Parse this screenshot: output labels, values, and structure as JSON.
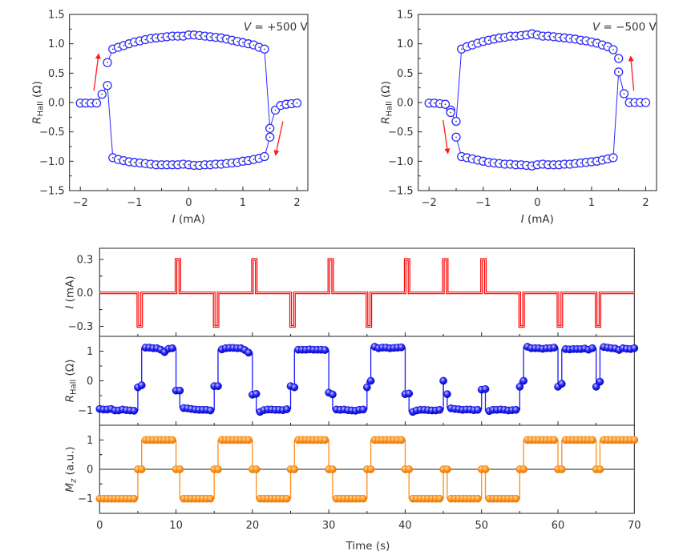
{
  "chart_data": [
    {
      "type": "scatter",
      "annotation": {
        "symbol": "V",
        "text": " = +500 V"
      },
      "xlabel": {
        "symbol": "I",
        "unit": " (mA)"
      },
      "ylabel": {
        "symbol": "R",
        "subscript": "Hall",
        "unit": " (Ω)"
      },
      "xlim": [
        -2.2,
        2.2
      ],
      "ylim": [
        -1.5,
        1.5
      ],
      "xticks": [
        "−2",
        "−1",
        "0",
        "1",
        "2"
      ],
      "yticks": [
        "−1.5",
        "−1.0",
        "−0.5",
        "0.0",
        "0.5",
        "1.0",
        "1.5"
      ],
      "color": "#2a2aff",
      "arrow_color": "#ff1a1a",
      "series": [
        {
          "points": [
            [
              -1.5,
              0.68
            ],
            [
              -1.4,
              0.91
            ],
            [
              -1.3,
              0.94
            ],
            [
              -1.2,
              0.97
            ],
            [
              -1.1,
              1.0
            ],
            [
              -1.0,
              1.03
            ],
            [
              -0.9,
              1.05
            ],
            [
              -0.8,
              1.07
            ],
            [
              -0.7,
              1.09
            ],
            [
              -0.6,
              1.1
            ],
            [
              -0.5,
              1.11
            ],
            [
              -0.4,
              1.12
            ],
            [
              -0.3,
              1.13
            ],
            [
              -0.2,
              1.13
            ],
            [
              -0.1,
              1.13
            ],
            [
              0,
              1.15
            ],
            [
              0.1,
              1.15
            ],
            [
              0.2,
              1.14
            ],
            [
              0.3,
              1.13
            ],
            [
              0.4,
              1.12
            ],
            [
              0.5,
              1.11
            ],
            [
              0.6,
              1.1
            ],
            [
              0.7,
              1.08
            ],
            [
              0.8,
              1.06
            ],
            [
              0.9,
              1.04
            ],
            [
              1.0,
              1.02
            ],
            [
              1.1,
              1.0
            ],
            [
              1.2,
              0.98
            ],
            [
              1.3,
              0.94
            ],
            [
              1.4,
              0.91
            ],
            [
              1.5,
              -0.44
            ],
            [
              1.6,
              -0.13
            ],
            [
              1.7,
              -0.05
            ],
            [
              1.8,
              -0.03
            ],
            [
              1.9,
              -0.02
            ],
            [
              2.0,
              -0.01
            ]
          ]
        },
        {
          "points": [
            [
              -2.0,
              -0.01
            ],
            [
              -1.9,
              -0.01
            ],
            [
              -1.8,
              -0.01
            ],
            [
              -1.7,
              -0.01
            ],
            [
              -1.6,
              0.14
            ],
            [
              -1.5,
              0.29
            ],
            [
              -1.4,
              -0.94
            ],
            [
              -1.3,
              -0.97
            ],
            [
              -1.2,
              -0.99
            ],
            [
              -1.1,
              -1.01
            ],
            [
              -1.0,
              -1.02
            ],
            [
              -0.9,
              -1.03
            ],
            [
              -0.8,
              -1.04
            ],
            [
              -0.7,
              -1.05
            ],
            [
              -0.6,
              -1.06
            ],
            [
              -0.5,
              -1.06
            ],
            [
              -0.4,
              -1.06
            ],
            [
              -0.3,
              -1.06
            ],
            [
              -0.2,
              -1.06
            ],
            [
              -0.1,
              -1.05
            ],
            [
              0,
              -1.06
            ],
            [
              0.1,
              -1.07
            ],
            [
              0.2,
              -1.07
            ],
            [
              0.3,
              -1.06
            ],
            [
              0.4,
              -1.06
            ],
            [
              0.5,
              -1.05
            ],
            [
              0.6,
              -1.05
            ],
            [
              0.7,
              -1.04
            ],
            [
              0.8,
              -1.03
            ],
            [
              0.9,
              -1.02
            ],
            [
              1.0,
              -1.0
            ],
            [
              1.1,
              -0.99
            ],
            [
              1.2,
              -0.97
            ],
            [
              1.3,
              -0.95
            ],
            [
              1.4,
              -0.92
            ],
            [
              1.5,
              -0.59
            ]
          ]
        }
      ],
      "arrows": [
        [
          [
            -1.75,
            0.2
          ],
          [
            -1.66,
            0.84
          ]
        ],
        [
          [
            1.74,
            -0.32
          ],
          [
            1.6,
            -0.91
          ]
        ]
      ]
    },
    {
      "type": "scatter",
      "annotation": {
        "symbol": "V",
        "text": " = −500 V"
      },
      "xlabel": {
        "symbol": "I",
        "unit": " (mA)"
      },
      "ylabel": {
        "symbol": "R",
        "subscript": "Hall",
        "unit": " (Ω)"
      },
      "xlim": [
        -2.2,
        2.2
      ],
      "ylim": [
        -1.5,
        1.5
      ],
      "xticks": [
        "−2",
        "−1",
        "0",
        "1",
        "2"
      ],
      "yticks": [
        "−1.5",
        "−1.0",
        "−0.5",
        "0.0",
        "0.5",
        "1.0",
        "1.5"
      ],
      "color": "#2a2aff",
      "arrow_color": "#ff1a1a",
      "series": [
        {
          "points": [
            [
              -2.0,
              -0.01
            ],
            [
              -1.9,
              -0.01
            ],
            [
              -1.8,
              -0.02
            ],
            [
              -1.7,
              -0.03
            ],
            [
              -1.6,
              -0.13
            ],
            [
              -1.6,
              -0.17
            ],
            [
              -1.5,
              -0.32
            ],
            [
              -1.4,
              0.91
            ],
            [
              -1.3,
              0.95
            ],
            [
              -1.2,
              0.98
            ],
            [
              -1.1,
              1.01
            ],
            [
              -1.0,
              1.04
            ],
            [
              -0.9,
              1.06
            ],
            [
              -0.8,
              1.08
            ],
            [
              -0.7,
              1.1
            ],
            [
              -0.6,
              1.11
            ],
            [
              -0.5,
              1.13
            ],
            [
              -0.4,
              1.13
            ],
            [
              -0.3,
              1.14
            ],
            [
              -0.2,
              1.15
            ],
            [
              -0.1,
              1.17
            ],
            [
              0,
              1.15
            ],
            [
              0.1,
              1.13
            ],
            [
              0.2,
              1.13
            ],
            [
              0.3,
              1.12
            ],
            [
              0.4,
              1.11
            ],
            [
              0.5,
              1.1
            ],
            [
              0.6,
              1.09
            ],
            [
              0.7,
              1.08
            ],
            [
              0.8,
              1.06
            ],
            [
              0.9,
              1.05
            ],
            [
              1.0,
              1.03
            ],
            [
              1.1,
              1.01
            ],
            [
              1.2,
              0.98
            ],
            [
              1.3,
              0.95
            ],
            [
              1.4,
              0.9
            ],
            [
              1.5,
              0.75
            ]
          ]
        },
        {
          "points": [
            [
              -1.5,
              -0.59
            ],
            [
              -1.4,
              -0.92
            ],
            [
              -1.3,
              -0.94
            ],
            [
              -1.2,
              -0.96
            ],
            [
              -1.1,
              -0.98
            ],
            [
              -1.0,
              -1.0
            ],
            [
              -0.9,
              -1.02
            ],
            [
              -0.8,
              -1.03
            ],
            [
              -0.7,
              -1.04
            ],
            [
              -0.6,
              -1.05
            ],
            [
              -0.5,
              -1.05
            ],
            [
              -0.4,
              -1.06
            ],
            [
              -0.3,
              -1.06
            ],
            [
              -0.2,
              -1.07
            ],
            [
              -0.1,
              -1.08
            ],
            [
              0,
              -1.06
            ],
            [
              0.1,
              -1.05
            ],
            [
              0.2,
              -1.06
            ],
            [
              0.3,
              -1.06
            ],
            [
              0.4,
              -1.06
            ],
            [
              0.5,
              -1.05
            ],
            [
              0.6,
              -1.05
            ],
            [
              0.7,
              -1.04
            ],
            [
              0.8,
              -1.03
            ],
            [
              0.9,
              -1.02
            ],
            [
              1.0,
              -1.01
            ],
            [
              1.1,
              -1.0
            ],
            [
              1.2,
              -0.98
            ],
            [
              1.3,
              -0.96
            ],
            [
              1.4,
              -0.94
            ],
            [
              1.5,
              0.52
            ],
            [
              1.6,
              0.15
            ],
            [
              1.7,
              0.0
            ],
            [
              1.8,
              0.0
            ],
            [
              1.9,
              0.0
            ],
            [
              2.0,
              0.0
            ]
          ]
        }
      ],
      "arrows": [
        [
          [
            -1.74,
            -0.3
          ],
          [
            -1.65,
            -0.88
          ]
        ],
        [
          [
            1.78,
            0.2
          ],
          [
            1.72,
            0.8
          ]
        ]
      ]
    },
    {
      "type": "line",
      "xlabel": "Time (s)",
      "xlim": [
        0,
        70
      ],
      "xticks": [
        "0",
        "10",
        "20",
        "30",
        "40",
        "50",
        "60",
        "70"
      ],
      "panels": [
        {
          "ylabel": {
            "symbol": "I",
            "unit": " (mA)"
          },
          "ylim": [
            -0.39,
            0.4
          ],
          "yticks": [
            "−0.3",
            "0.0",
            "0.3"
          ],
          "color": "#ff0000",
          "baseline": 0,
          "pulse_width": 0.5,
          "pulses": [
            [
              5,
              -0.3
            ],
            [
              10,
              0.3
            ],
            [
              15,
              -0.3
            ],
            [
              20,
              0.3
            ],
            [
              25,
              -0.3
            ],
            [
              30,
              0.3
            ],
            [
              35,
              -0.3
            ],
            [
              40,
              0.3
            ],
            [
              45,
              0.3
            ],
            [
              50,
              0.3
            ],
            [
              55,
              -0.3
            ],
            [
              60,
              -0.3
            ],
            [
              65,
              -0.3
            ]
          ]
        },
        {
          "ylabel": {
            "symbol": "R",
            "subscript": "Hall",
            "unit": " (Ω)"
          },
          "ylim": [
            -1.5,
            1.5
          ],
          "yticks": [
            "−1",
            "0",
            "1"
          ],
          "color": "#1a1aff",
          "t_start": 0,
          "t_step": 0.5,
          "values": [
            -0.95,
            -0.97,
            -0.97,
            -0.95,
            -1.0,
            -1.0,
            -0.97,
            -0.99,
            -1.0,
            -1.01,
            -0.22,
            -0.15,
            1.12,
            1.12,
            1.1,
            1.1,
            1.05,
            0.97,
            1.08,
            1.1,
            -0.33,
            -0.33,
            -0.92,
            -0.93,
            -0.95,
            -0.97,
            -0.98,
            -0.98,
            -0.98,
            -1.0,
            -0.18,
            -0.18,
            1.06,
            1.1,
            1.11,
            1.11,
            1.1,
            1.1,
            1.04,
            0.95,
            -0.47,
            -0.44,
            -1.05,
            -0.99,
            -0.97,
            -0.97,
            -0.98,
            -0.98,
            -0.99,
            -0.96,
            -0.18,
            -0.22,
            1.05,
            1.05,
            1.05,
            1.06,
            1.05,
            1.05,
            1.05,
            1.04,
            -0.4,
            -0.46,
            -0.97,
            -0.98,
            -0.97,
            -0.99,
            -1.0,
            -1.01,
            -0.98,
            -0.97,
            -0.22,
            0.0,
            1.15,
            1.1,
            1.12,
            1.12,
            1.1,
            1.11,
            1.12,
            1.13,
            -0.45,
            -0.43,
            -1.05,
            -1.0,
            -0.98,
            -0.98,
            -0.99,
            -1.0,
            -1.0,
            -0.98,
            0.0,
            -0.45,
            -0.93,
            -0.95,
            -0.96,
            -0.98,
            -0.97,
            -0.97,
            -0.99,
            -0.98,
            -0.3,
            -0.28,
            -1.02,
            -0.98,
            -0.98,
            -0.97,
            -0.98,
            -1.0,
            -0.99,
            -0.98,
            -0.2,
            0.0,
            1.15,
            1.1,
            1.1,
            1.1,
            1.08,
            1.1,
            1.1,
            1.12,
            -0.2,
            -0.1,
            1.07,
            1.06,
            1.07,
            1.07,
            1.07,
            1.09,
            1.05,
            1.1,
            -0.2,
            -0.03,
            1.14,
            1.12,
            1.1,
            1.09,
            1.04,
            1.1,
            1.08,
            1.07,
            1.1
          ]
        },
        {
          "ylabel": {
            "symbol": "M",
            "subscript": "z",
            "unit": " (a.u.)"
          },
          "ylim": [
            -1.5,
            1.5
          ],
          "yticks": [
            "−1",
            "0",
            "1"
          ],
          "color": "#ff8c1a",
          "zero_line": true,
          "t_start": 0,
          "t_step": 0.5,
          "values": [
            -1,
            -1,
            -1,
            -1,
            -1,
            -1,
            -1,
            -1,
            -1,
            -1,
            0,
            0,
            1,
            1,
            1,
            1,
            1,
            1,
            1,
            1,
            0,
            0,
            -1,
            -1,
            -1,
            -1,
            -1,
            -1,
            -1,
            -1,
            0,
            0,
            1,
            1,
            1,
            1,
            1,
            1,
            1,
            1,
            0,
            0,
            -1,
            -1,
            -1,
            -1,
            -1,
            -1,
            -1,
            -1,
            0,
            0,
            1,
            1,
            1,
            1,
            1,
            1,
            1,
            1,
            0,
            0,
            -1,
            -1,
            -1,
            -1,
            -1,
            -1,
            -1,
            -1,
            0,
            0,
            1,
            1,
            1,
            1,
            1,
            1,
            1,
            1,
            0,
            0,
            -1,
            -1,
            -1,
            -1,
            -1,
            -1,
            -1,
            -1,
            0,
            0,
            -1,
            -1,
            -1,
            -1,
            -1,
            -1,
            -1,
            -1,
            0,
            0,
            -1,
            -1,
            -1,
            -1,
            -1,
            -1,
            -1,
            -1,
            0,
            0,
            1,
            1,
            1,
            1,
            1,
            1,
            1,
            1,
            0,
            0,
            1,
            1,
            1,
            1,
            1,
            1,
            1,
            1,
            0,
            0,
            1,
            1,
            1,
            1,
            1,
            1,
            1,
            1,
            1
          ]
        }
      ]
    }
  ]
}
